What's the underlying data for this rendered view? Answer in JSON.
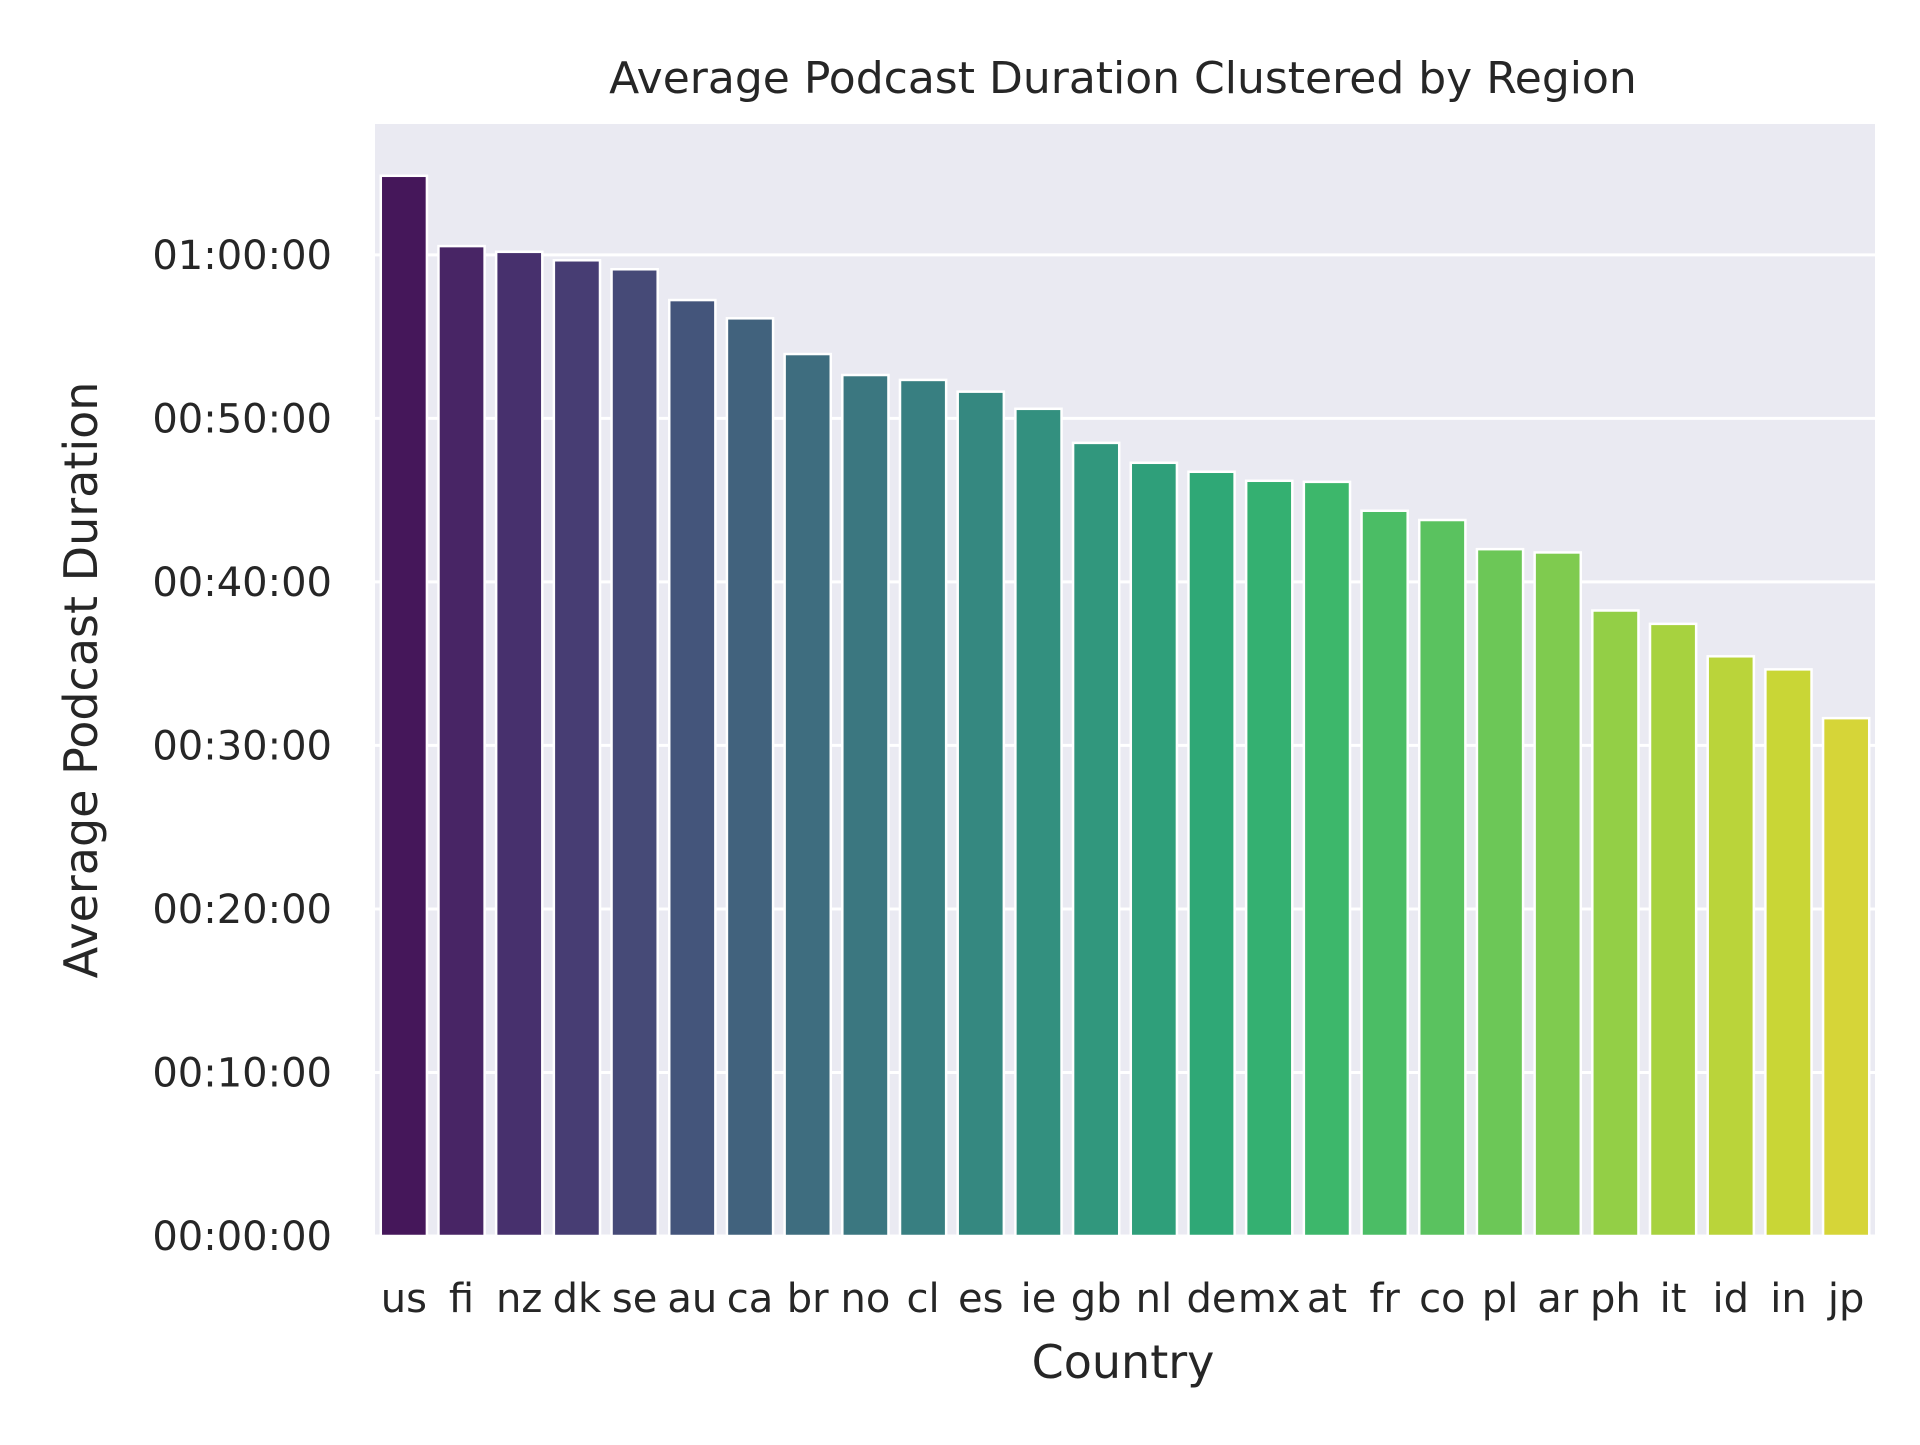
{
  "chart_data": {
    "type": "bar",
    "title": "Average Podcast Duration Clustered by Region",
    "xlabel": "Country",
    "ylabel": "Average Podcast Duration",
    "categories": [
      "us",
      "fi",
      "nz",
      "dk",
      "se",
      "au",
      "ca",
      "br",
      "no",
      "cl",
      "es",
      "ie",
      "gb",
      "nl",
      "de",
      "mx",
      "at",
      "fr",
      "co",
      "pl",
      "ar",
      "ph",
      "it",
      "id",
      "in",
      "jp"
    ],
    "values_seconds": [
      3890,
      3632,
      3611,
      3580,
      3547,
      3434,
      3367,
      3236,
      3159,
      3141,
      3098,
      3035,
      2910,
      2837,
      2804,
      2771,
      2767,
      2661,
      2627,
      2520,
      2508,
      2295,
      2246,
      2127,
      2079,
      1900
    ],
    "ylim_seconds": [
      0,
      4080
    ],
    "yticks": [
      {
        "seconds": 0,
        "label": "00:00:00"
      },
      {
        "seconds": 600,
        "label": "00:10:00"
      },
      {
        "seconds": 1200,
        "label": "00:20:00"
      },
      {
        "seconds": 1800,
        "label": "00:30:00"
      },
      {
        "seconds": 2400,
        "label": "00:40:00"
      },
      {
        "seconds": 3000,
        "label": "00:50:00"
      },
      {
        "seconds": 3600,
        "label": "01:00:00"
      }
    ],
    "colors": [
      "#45175a",
      "#482565",
      "#47306d",
      "#473d73",
      "#464a77",
      "#44557b",
      "#41627d",
      "#3e6d7f",
      "#3b7780",
      "#387f81",
      "#358880",
      "#33907f",
      "#31977d",
      "#2f9f7a",
      "#2fa876",
      "#34b071",
      "#3db76b",
      "#4bbd65",
      "#5ac25f",
      "#6cc757",
      "#7fcb4f",
      "#93cf46",
      "#a7d23f",
      "#bad43a",
      "#c9d636",
      "#d6d538"
    ],
    "background": "#eaeaf2",
    "grid": true,
    "legend": "none"
  }
}
